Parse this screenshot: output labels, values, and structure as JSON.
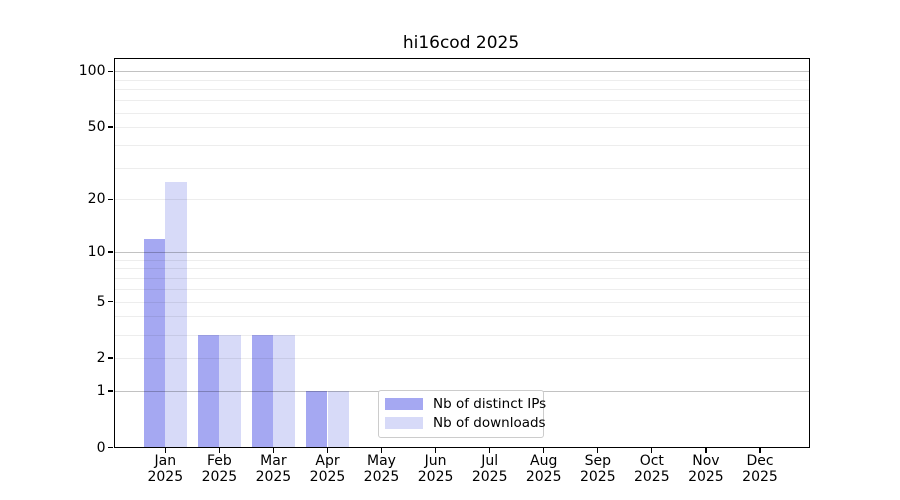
{
  "title": "hi16cod 2025",
  "chart_data": {
    "type": "bar",
    "title": "hi16cod 2025",
    "categories": [
      "Jan",
      "Feb",
      "Mar",
      "Apr",
      "May",
      "Jun",
      "Jul",
      "Aug",
      "Sep",
      "Oct",
      "Nov",
      "Dec"
    ],
    "x_tick_second_line": "2025",
    "series": [
      {
        "name": "Nb of distinct IPs",
        "color": "#a5a8f2",
        "values": [
          12,
          3,
          3,
          1,
          0,
          0,
          0,
          0,
          0,
          0,
          0,
          0
        ]
      },
      {
        "name": "Nb of downloads",
        "color": "#d7daf8",
        "values": [
          25,
          3,
          3,
          1,
          0,
          0,
          0,
          0,
          0,
          0,
          0,
          0
        ]
      }
    ],
    "y_axis": {
      "scale": "log1p",
      "tick_values": [
        0,
        1,
        2,
        5,
        10,
        20,
        50,
        100
      ],
      "major_gridlines": [
        1,
        10,
        100
      ],
      "minor_gridlines": [
        2,
        3,
        4,
        5,
        6,
        7,
        8,
        9,
        20,
        30,
        40,
        50,
        60,
        70,
        80,
        90
      ],
      "ylim": [
        0,
        118
      ]
    },
    "legend": {
      "position": "lower center",
      "items": [
        "Nb of distinct IPs",
        "Nb of downloads"
      ]
    },
    "grid": true,
    "colors": {
      "grid_major": "#c2c2c2",
      "grid_minor": "#eeeeee",
      "spine": "#000000",
      "background": "#ffffff"
    }
  }
}
